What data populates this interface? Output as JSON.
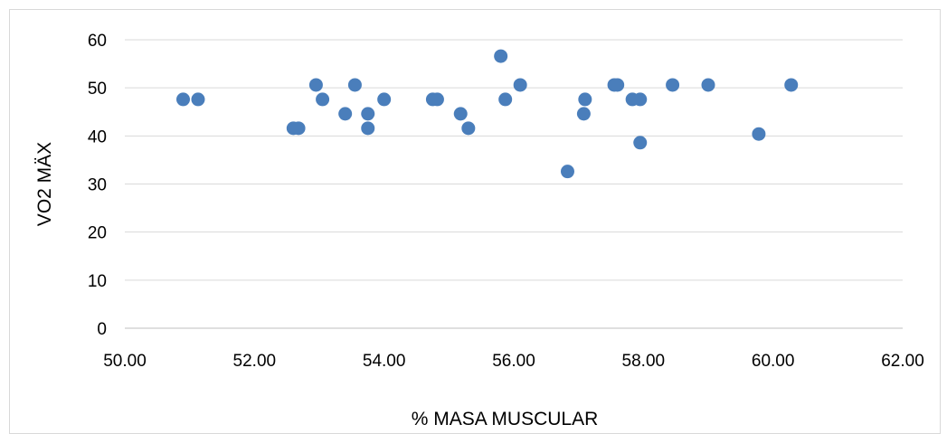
{
  "chart_data": {
    "type": "scatter",
    "xlabel": "% MASA MUSCULAR",
    "ylabel": "VO2 MÄX",
    "xlim": [
      50,
      62
    ],
    "ylim": [
      0,
      60
    ],
    "x_ticks": [
      "50.00",
      "52.00",
      "54.00",
      "56.00",
      "58.00",
      "60.00",
      "62.00"
    ],
    "y_ticks": [
      "0",
      "10",
      "20",
      "30",
      "40",
      "50",
      "60"
    ],
    "grid": "horizontal",
    "legend": "none",
    "marker_color": "#4a7ebb",
    "points": [
      {
        "x": 50.9,
        "y": 47.6
      },
      {
        "x": 51.13,
        "y": 47.6
      },
      {
        "x": 52.6,
        "y": 41.6
      },
      {
        "x": 52.68,
        "y": 41.6
      },
      {
        "x": 52.95,
        "y": 50.6
      },
      {
        "x": 53.05,
        "y": 47.6
      },
      {
        "x": 53.4,
        "y": 44.6
      },
      {
        "x": 53.55,
        "y": 50.6
      },
      {
        "x": 53.75,
        "y": 44.6
      },
      {
        "x": 53.75,
        "y": 41.6
      },
      {
        "x": 54.0,
        "y": 47.6
      },
      {
        "x": 54.75,
        "y": 47.6
      },
      {
        "x": 54.82,
        "y": 47.6
      },
      {
        "x": 55.18,
        "y": 44.6
      },
      {
        "x": 55.3,
        "y": 41.6
      },
      {
        "x": 55.8,
        "y": 56.6
      },
      {
        "x": 55.87,
        "y": 47.6
      },
      {
        "x": 56.1,
        "y": 50.6
      },
      {
        "x": 56.83,
        "y": 32.6
      },
      {
        "x": 57.1,
        "y": 47.6
      },
      {
        "x": 57.08,
        "y": 44.6
      },
      {
        "x": 57.55,
        "y": 50.6
      },
      {
        "x": 57.6,
        "y": 50.6
      },
      {
        "x": 57.83,
        "y": 47.6
      },
      {
        "x": 57.95,
        "y": 47.6
      },
      {
        "x": 57.95,
        "y": 38.6
      },
      {
        "x": 58.45,
        "y": 50.6
      },
      {
        "x": 59.0,
        "y": 50.6
      },
      {
        "x": 59.78,
        "y": 40.4
      },
      {
        "x": 60.28,
        "y": 50.6
      }
    ]
  }
}
